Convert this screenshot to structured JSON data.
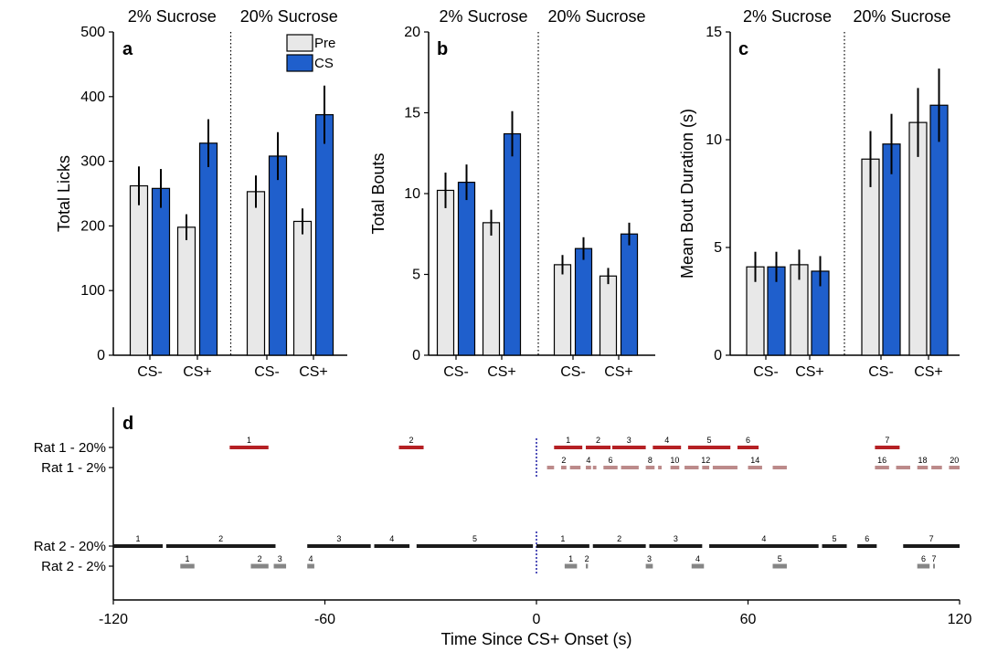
{
  "colors": {
    "pre": "#e8e8e8",
    "cs": "#1f5fcc",
    "rat1_20": "#b52024",
    "rat1_2": "#bc8a8a",
    "rat2_20": "#1a1a1a",
    "rat2_2": "#858585",
    "onset_line": "#2a2aaa"
  },
  "legend": [
    "Pre",
    "CS"
  ],
  "chart_data": [
    {
      "panel": "a",
      "type": "bar",
      "ylabel": "Total Licks",
      "ylim": [
        0,
        500
      ],
      "yticks": [
        0,
        100,
        200,
        300,
        400,
        500
      ],
      "groups": [
        "2% Sucrose",
        "20% Sucrose"
      ],
      "categories": [
        "CS-",
        "CS+",
        "CS-",
        "CS+"
      ],
      "series": [
        {
          "name": "Pre",
          "values": [
            262,
            198,
            253,
            207
          ],
          "errors": [
            30,
            20,
            25,
            20
          ]
        },
        {
          "name": "CS",
          "values": [
            258,
            328,
            308,
            372
          ],
          "errors": [
            30,
            37,
            37,
            45
          ]
        }
      ]
    },
    {
      "panel": "b",
      "type": "bar",
      "ylabel": "Total Bouts",
      "ylim": [
        0,
        20
      ],
      "yticks": [
        0,
        5,
        10,
        15,
        20
      ],
      "groups": [
        "2% Sucrose",
        "20% Sucrose"
      ],
      "categories": [
        "CS-",
        "CS+",
        "CS-",
        "CS+"
      ],
      "series": [
        {
          "name": "Pre",
          "values": [
            10.2,
            8.2,
            5.6,
            4.9
          ],
          "errors": [
            1.1,
            0.8,
            0.6,
            0.5
          ]
        },
        {
          "name": "CS",
          "values": [
            10.7,
            13.7,
            6.6,
            7.5
          ],
          "errors": [
            1.1,
            1.4,
            0.7,
            0.7
          ]
        }
      ]
    },
    {
      "panel": "c",
      "type": "bar",
      "ylabel": "Mean Bout Duration (s)",
      "ylim": [
        0,
        15
      ],
      "yticks": [
        0,
        5,
        10,
        15
      ],
      "groups": [
        "2% Sucrose",
        "20% Sucrose"
      ],
      "categories": [
        "CS-",
        "CS+",
        "CS-",
        "CS+"
      ],
      "series": [
        {
          "name": "Pre",
          "values": [
            4.1,
            4.2,
            9.1,
            10.8
          ],
          "errors": [
            0.7,
            0.7,
            1.3,
            1.6
          ]
        },
        {
          "name": "CS",
          "values": [
            4.1,
            3.9,
            9.8,
            11.6
          ],
          "errors": [
            0.7,
            0.7,
            1.4,
            1.7
          ]
        }
      ]
    },
    {
      "panel": "d",
      "type": "timeline",
      "xlabel": "Time Since CS+ Onset (s)",
      "xlim": [
        -120,
        120
      ],
      "xticks": [
        -120,
        -60,
        0,
        60,
        120
      ],
      "rows": [
        {
          "label": "Rat 1 - 20%",
          "color_key": "rat1_20",
          "bouts": [
            {
              "n": "1",
              "start": -87,
              "end": -76
            },
            {
              "n": "2",
              "start": -39,
              "end": -32
            },
            {
              "n": "1",
              "start": 5,
              "end": 13
            },
            {
              "n": "2",
              "start": 14,
              "end": 21
            },
            {
              "n": "3",
              "start": 21.5,
              "end": 31
            },
            {
              "n": "4",
              "start": 33,
              "end": 41
            },
            {
              "n": "5",
              "start": 43,
              "end": 55
            },
            {
              "n": "6",
              "start": 57,
              "end": 63
            },
            {
              "n": "7",
              "start": 96,
              "end": 103
            }
          ]
        },
        {
          "label": "Rat 1 - 2%",
          "color_key": "rat1_2",
          "bouts": [
            {
              "n": "",
              "start": 3,
              "end": 5
            },
            {
              "n": "2",
              "start": 7,
              "end": 8.5
            },
            {
              "n": "",
              "start": 9.5,
              "end": 12.5
            },
            {
              "n": "4",
              "start": 14,
              "end": 15.5
            },
            {
              "n": "",
              "start": 16,
              "end": 17
            },
            {
              "n": "6",
              "start": 19,
              "end": 23
            },
            {
              "n": "",
              "start": 24,
              "end": 29
            },
            {
              "n": "8",
              "start": 31,
              "end": 33.5
            },
            {
              "n": "",
              "start": 34.5,
              "end": 35.5
            },
            {
              "n": "10",
              "start": 38,
              "end": 40.5
            },
            {
              "n": "",
              "start": 42,
              "end": 46
            },
            {
              "n": "12",
              "start": 47,
              "end": 49
            },
            {
              "n": "",
              "start": 50,
              "end": 57
            },
            {
              "n": "14",
              "start": 60,
              "end": 64
            },
            {
              "n": "",
              "start": 67,
              "end": 71
            },
            {
              "n": "16",
              "start": 96,
              "end": 100
            },
            {
              "n": "",
              "start": 102,
              "end": 106
            },
            {
              "n": "18",
              "start": 108,
              "end": 111
            },
            {
              "n": "",
              "start": 112,
              "end": 115
            },
            {
              "n": "20",
              "start": 117,
              "end": 120
            }
          ]
        },
        {
          "label": "Rat 2 - 20%",
          "color_key": "rat2_20",
          "bouts": [
            {
              "n": "1",
              "start": -120,
              "end": -106
            },
            {
              "n": "2",
              "start": -105,
              "end": -74
            },
            {
              "n": "3",
              "start": -65,
              "end": -47
            },
            {
              "n": "4",
              "start": -46,
              "end": -36
            },
            {
              "n": "5",
              "start": -34,
              "end": -1
            },
            {
              "n": "1",
              "start": 0,
              "end": 15
            },
            {
              "n": "2",
              "start": 16,
              "end": 31
            },
            {
              "n": "3",
              "start": 32,
              "end": 47
            },
            {
              "n": "4",
              "start": 49,
              "end": 80
            },
            {
              "n": "5",
              "start": 81,
              "end": 88
            },
            {
              "n": "6",
              "start": 91,
              "end": 96.5
            },
            {
              "n": "7",
              "start": 104,
              "end": 120
            }
          ]
        },
        {
          "label": "Rat 2 - 2%",
          "color_key": "rat2_2",
          "bouts": [
            {
              "n": "1",
              "start": -101,
              "end": -97
            },
            {
              "n": "2",
              "start": -81,
              "end": -76
            },
            {
              "n": "3",
              "start": -74.5,
              "end": -71
            },
            {
              "n": "4",
              "start": -65,
              "end": -63
            },
            {
              "n": "1",
              "start": 8,
              "end": 11.5
            },
            {
              "n": "2",
              "start": 14,
              "end": 14.6
            },
            {
              "n": "3",
              "start": 31,
              "end": 33
            },
            {
              "n": "4",
              "start": 44,
              "end": 47.5
            },
            {
              "n": "5",
              "start": 67,
              "end": 71
            },
            {
              "n": "6",
              "start": 108,
              "end": 111.5
            },
            {
              "n": "7",
              "start": 112.5,
              "end": 113
            }
          ]
        }
      ]
    }
  ]
}
